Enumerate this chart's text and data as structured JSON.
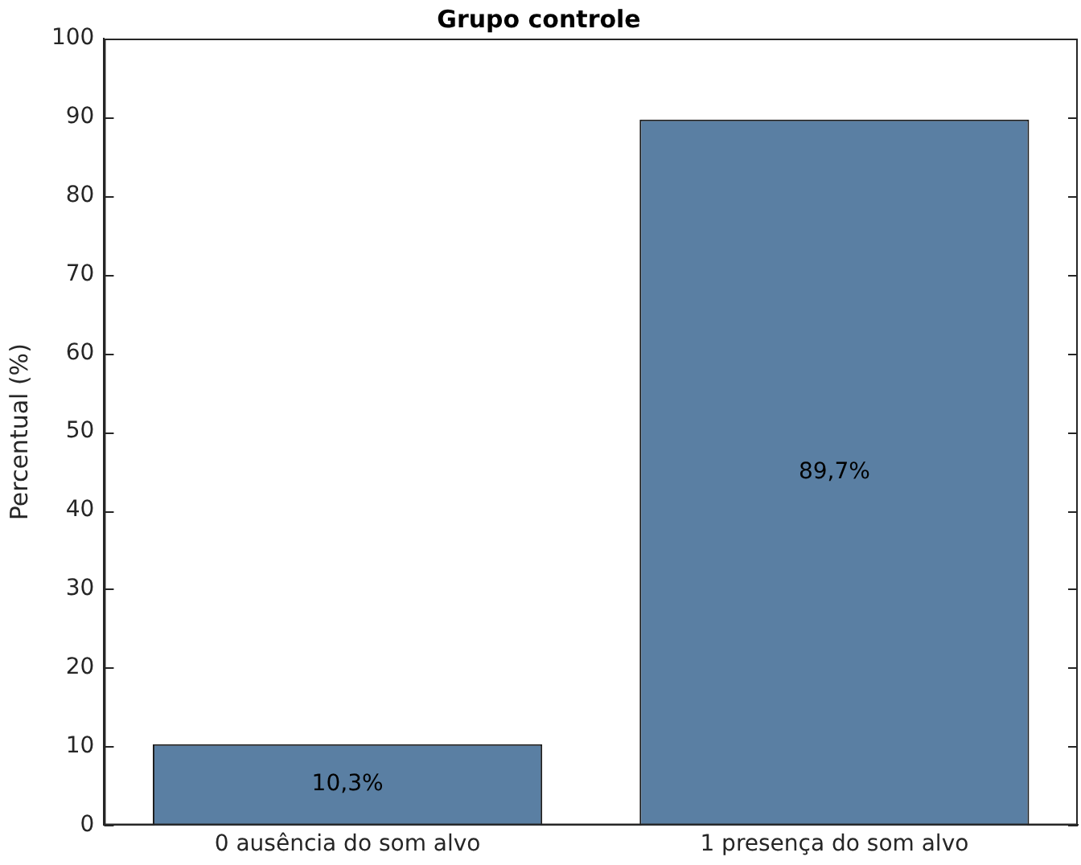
{
  "chart_data": {
    "type": "bar",
    "title": "Grupo controle",
    "ylabel": "Percentual (%)",
    "categories": [
      "0 ausência do som alvo",
      "1 presença do som alvo"
    ],
    "values": [
      10.3,
      89.7
    ],
    "value_labels": [
      "10,3%",
      "89,7%"
    ],
    "color": "#5a7fa3",
    "ylim": [
      0,
      100
    ],
    "yticks": [
      0,
      10,
      20,
      30,
      40,
      50,
      60,
      70,
      80,
      90,
      100
    ],
    "grid": false,
    "legend": false
  }
}
